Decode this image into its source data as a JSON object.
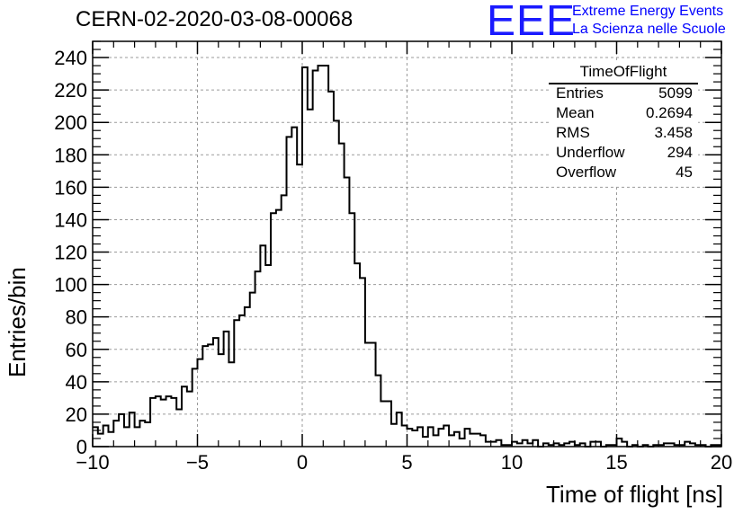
{
  "page": {
    "title": "CERN-02-2020-03-08-00068",
    "logo": {
      "mark": "EEE",
      "line1": "Extreme Energy Events",
      "line2": "La Scienza nelle Scuole"
    }
  },
  "stats_box": {
    "title": "TimeOfFlight",
    "rows": [
      {
        "label": "Entries",
        "value": "5099"
      },
      {
        "label": "Mean",
        "value": "0.2694"
      },
      {
        "label": "RMS",
        "value": "3.458"
      },
      {
        "label": "Underflow",
        "value": "294"
      },
      {
        "label": "Overflow",
        "value": "45"
      }
    ]
  },
  "colors": {
    "line": "#000000",
    "grid": "#9a9a9a",
    "logo": "#0000ff"
  },
  "chart_data": {
    "type": "histogram",
    "title": "CERN-02-2020-03-08-00068",
    "xlabel": "Time of flight [ns]",
    "ylabel": "Entries/bin",
    "xlim": [
      -10,
      20
    ],
    "ylim": [
      0,
      250
    ],
    "grid": true,
    "bin_width": 0.25,
    "bin_start": -10,
    "x_ticks": [
      -10,
      -5,
      0,
      5,
      10,
      15,
      20
    ],
    "y_ticks": [
      0,
      20,
      40,
      60,
      80,
      100,
      120,
      140,
      160,
      180,
      200,
      220,
      240
    ],
    "values": [
      12,
      8,
      13,
      9,
      16,
      20,
      12,
      21,
      12,
      16,
      15,
      30,
      31,
      29,
      31,
      30,
      23,
      37,
      34,
      48,
      54,
      62,
      63,
      67,
      57,
      71,
      52,
      78,
      81,
      86,
      95,
      108,
      124,
      112,
      144,
      146,
      155,
      191,
      197,
      174,
      234,
      208,
      232,
      235,
      235,
      219,
      201,
      187,
      166,
      144,
      113,
      104,
      64,
      64,
      44,
      28,
      28,
      14,
      21,
      13,
      11,
      10,
      12,
      6,
      12,
      7,
      11,
      13,
      7,
      9,
      5,
      11,
      8,
      8,
      7,
      3,
      3,
      4,
      1,
      1,
      3,
      2,
      4,
      2,
      4,
      0,
      2,
      1,
      2,
      1,
      2,
      3,
      1,
      2,
      0,
      3,
      3,
      0,
      1,
      1,
      5,
      3,
      0,
      1,
      0,
      1,
      0,
      1,
      1,
      2,
      2,
      1,
      1,
      3,
      2,
      1,
      1,
      0,
      1,
      1
    ]
  }
}
